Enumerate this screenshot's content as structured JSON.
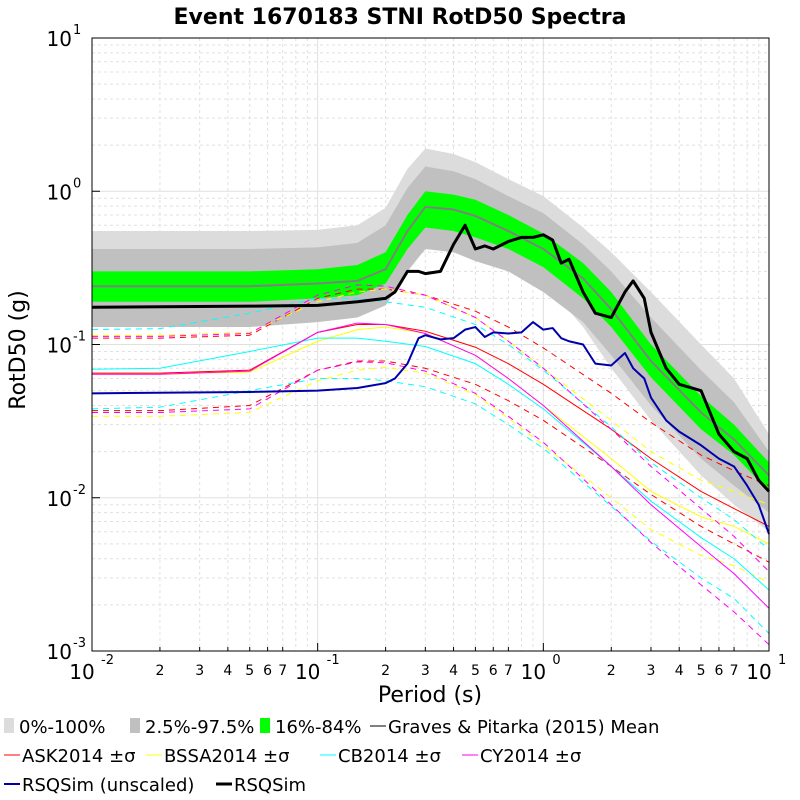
{
  "chart_data": {
    "type": "line",
    "title": "Event 1670183 STNI RotD50 Spectra",
    "xlabel": "Period (s)",
    "ylabel": "RotD50 (g)",
    "xscale": "log",
    "yscale": "log",
    "xlim": [
      0.01,
      10
    ],
    "ylim": [
      0.001,
      10
    ],
    "grid": true,
    "legend_placement": "bottom",
    "x_major_ticks": [
      {
        "base": "10",
        "exp": "-2"
      },
      {
        "base": "10",
        "exp": "-1"
      },
      {
        "base": "10",
        "exp": "0"
      },
      {
        "base": "10",
        "exp": "1"
      }
    ],
    "y_major_ticks": [
      {
        "base": "10",
        "exp": "-3"
      },
      {
        "base": "10",
        "exp": "-2"
      },
      {
        "base": "10",
        "exp": "-1"
      },
      {
        "base": "10",
        "exp": "0"
      },
      {
        "base": "10",
        "exp": "1"
      }
    ],
    "x_minor_tick_labels": [
      "2",
      "3",
      "4",
      "5",
      "6",
      "7"
    ],
    "periods": [
      0.01,
      0.02,
      0.05,
      0.1,
      0.15,
      0.2,
      0.25,
      0.3,
      0.4,
      0.5,
      0.7,
      1,
      1.5,
      2,
      3,
      5,
      7,
      10
    ],
    "bands": [
      {
        "name": "0%-100%",
        "color": "#dcdcdc",
        "lower": [
          0.17,
          0.17,
          0.17,
          0.18,
          0.19,
          0.22,
          0.35,
          0.52,
          0.48,
          0.42,
          0.34,
          0.26,
          0.13,
          0.07,
          0.032,
          0.014,
          0.009,
          0.006
        ],
        "upper": [
          0.55,
          0.55,
          0.55,
          0.56,
          0.6,
          0.78,
          1.4,
          1.9,
          1.75,
          1.55,
          1.2,
          0.93,
          0.58,
          0.4,
          0.22,
          0.1,
          0.06,
          0.026
        ]
      },
      {
        "name": "2.5%-97.5%",
        "color": "#c0c0c0",
        "lower": [
          0.13,
          0.13,
          0.13,
          0.14,
          0.15,
          0.18,
          0.3,
          0.42,
          0.4,
          0.35,
          0.3,
          0.22,
          0.14,
          0.085,
          0.04,
          0.018,
          0.012,
          0.008
        ],
        "upper": [
          0.42,
          0.42,
          0.42,
          0.43,
          0.46,
          0.6,
          1.05,
          1.45,
          1.35,
          1.2,
          0.93,
          0.72,
          0.45,
          0.3,
          0.15,
          0.068,
          0.042,
          0.02
        ]
      },
      {
        "name": "16%-84%",
        "color": "#00ff00",
        "lower": [
          0.19,
          0.19,
          0.19,
          0.2,
          0.21,
          0.25,
          0.42,
          0.58,
          0.55,
          0.5,
          0.42,
          0.32,
          0.2,
          0.13,
          0.061,
          0.028,
          0.019,
          0.011
        ],
        "upper": [
          0.3,
          0.3,
          0.3,
          0.31,
          0.33,
          0.4,
          0.7,
          1.0,
          0.95,
          0.88,
          0.7,
          0.53,
          0.34,
          0.22,
          0.1,
          0.046,
          0.03,
          0.017
        ]
      }
    ],
    "series": [
      {
        "name": "Graves & Pitarka (2015) Mean",
        "color": "#808080",
        "width": 2,
        "dash": "",
        "x": [
          0.01,
          0.02,
          0.05,
          0.1,
          0.15,
          0.2,
          0.25,
          0.3,
          0.4,
          0.5,
          0.7,
          1,
          1.5,
          2,
          3,
          5,
          7,
          10
        ],
        "y": [
          0.24,
          0.24,
          0.24,
          0.25,
          0.26,
          0.31,
          0.55,
          0.79,
          0.76,
          0.69,
          0.55,
          0.42,
          0.27,
          0.17,
          0.078,
          0.036,
          0.024,
          0.014
        ]
      },
      {
        "name": "ASK2014 ±σ",
        "color": "#ff0000",
        "width": 1,
        "dash": "",
        "x": [
          0.01,
          0.02,
          0.05,
          0.1,
          0.15,
          0.2,
          0.3,
          0.5,
          0.7,
          1,
          2,
          3,
          5,
          7,
          10
        ],
        "y": [
          0.065,
          0.065,
          0.068,
          0.12,
          0.135,
          0.135,
          0.122,
          0.096,
          0.075,
          0.055,
          0.028,
          0.018,
          0.011,
          0.0085,
          0.0065
        ]
      },
      {
        "name": "ASK2014 ±σ",
        "color": "#ff0000",
        "width": 1,
        "dash": "6,5",
        "x": [
          0.01,
          0.02,
          0.05,
          0.1,
          0.15,
          0.2,
          0.3,
          0.5,
          0.7,
          1,
          2,
          3,
          5,
          7,
          10
        ],
        "y": [
          0.11,
          0.11,
          0.115,
          0.2,
          0.23,
          0.23,
          0.21,
          0.165,
          0.13,
          0.095,
          0.048,
          0.031,
          0.019,
          0.015,
          0.012
        ]
      },
      {
        "name": "ASK2014 ±σ",
        "color": "#ff0000",
        "width": 1,
        "dash": "6,5",
        "x": [
          0.01,
          0.02,
          0.05,
          0.1,
          0.15,
          0.2,
          0.3,
          0.5,
          0.7,
          1,
          2,
          3,
          5,
          7,
          10
        ],
        "y": [
          0.037,
          0.037,
          0.04,
          0.068,
          0.078,
          0.078,
          0.07,
          0.055,
          0.043,
          0.032,
          0.016,
          0.0105,
          0.0065,
          0.005,
          0.0038
        ]
      },
      {
        "name": "BSSA2014 ±σ",
        "color": "#ffff00",
        "width": 1,
        "dash": "",
        "x": [
          0.01,
          0.02,
          0.05,
          0.1,
          0.15,
          0.2,
          0.3,
          0.5,
          0.7,
          1,
          2,
          3,
          5,
          7,
          10
        ],
        "y": [
          0.064,
          0.064,
          0.066,
          0.105,
          0.125,
          0.13,
          0.118,
          0.085,
          0.06,
          0.04,
          0.018,
          0.011,
          0.0075,
          0.0065,
          0.005
        ]
      },
      {
        "name": "BSSA2014 ±σ",
        "color": "#ffff00",
        "width": 1,
        "dash": "6,5",
        "x": [
          0.01,
          0.02,
          0.05,
          0.1,
          0.15,
          0.2,
          0.3,
          0.5,
          0.7,
          1,
          2,
          3,
          5,
          7,
          10
        ],
        "y": [
          0.115,
          0.115,
          0.12,
          0.19,
          0.22,
          0.23,
          0.21,
          0.15,
          0.105,
          0.07,
          0.032,
          0.02,
          0.013,
          0.011,
          0.009
        ]
      },
      {
        "name": "BSSA2014 ±σ",
        "color": "#ffff00",
        "width": 1,
        "dash": "6,5",
        "x": [
          0.01,
          0.02,
          0.05,
          0.1,
          0.15,
          0.2,
          0.3,
          0.5,
          0.7,
          1,
          2,
          3,
          5,
          7,
          10
        ],
        "y": [
          0.034,
          0.034,
          0.036,
          0.058,
          0.068,
          0.071,
          0.065,
          0.047,
          0.033,
          0.022,
          0.01,
          0.0062,
          0.0042,
          0.0036,
          0.0028
        ]
      },
      {
        "name": "CB2014 ±σ",
        "color": "#00ffff",
        "width": 1,
        "dash": "",
        "x": [
          0.01,
          0.02,
          0.05,
          0.1,
          0.15,
          0.2,
          0.3,
          0.5,
          0.7,
          1,
          2,
          3,
          5,
          7,
          10
        ],
        "y": [
          0.069,
          0.07,
          0.09,
          0.11,
          0.11,
          0.105,
          0.097,
          0.075,
          0.055,
          0.038,
          0.016,
          0.0095,
          0.0055,
          0.004,
          0.0025
        ]
      },
      {
        "name": "CB2014 ±σ",
        "color": "#00ffff",
        "width": 1,
        "dash": "6,5",
        "x": [
          0.01,
          0.02,
          0.05,
          0.1,
          0.15,
          0.2,
          0.3,
          0.5,
          0.7,
          1,
          2,
          3,
          5,
          7,
          10
        ],
        "y": [
          0.125,
          0.127,
          0.16,
          0.2,
          0.2,
          0.19,
          0.175,
          0.135,
          0.1,
          0.068,
          0.029,
          0.017,
          0.01,
          0.0072,
          0.0046
        ]
      },
      {
        "name": "CB2014 ±σ",
        "color": "#00ffff",
        "width": 1,
        "dash": "6,5",
        "x": [
          0.01,
          0.02,
          0.05,
          0.1,
          0.15,
          0.2,
          0.3,
          0.5,
          0.7,
          1,
          2,
          3,
          5,
          7,
          10
        ],
        "y": [
          0.038,
          0.039,
          0.05,
          0.06,
          0.06,
          0.058,
          0.053,
          0.041,
          0.03,
          0.021,
          0.0088,
          0.0052,
          0.003,
          0.0022,
          0.0013
        ]
      },
      {
        "name": "CY2014 ±σ",
        "color": "#ff00ff",
        "width": 1,
        "dash": "",
        "x": [
          0.01,
          0.02,
          0.05,
          0.1,
          0.15,
          0.2,
          0.3,
          0.5,
          0.7,
          1,
          2,
          3,
          5,
          7,
          10
        ],
        "y": [
          0.064,
          0.064,
          0.067,
          0.12,
          0.138,
          0.135,
          0.118,
          0.085,
          0.06,
          0.04,
          0.016,
          0.009,
          0.0048,
          0.0032,
          0.0019
        ]
      },
      {
        "name": "CY2014 ±σ",
        "color": "#ff00ff",
        "width": 1,
        "dash": "6,5",
        "x": [
          0.01,
          0.02,
          0.05,
          0.1,
          0.15,
          0.2,
          0.3,
          0.5,
          0.7,
          1,
          2,
          3,
          5,
          7,
          10
        ],
        "y": [
          0.113,
          0.113,
          0.118,
          0.21,
          0.245,
          0.24,
          0.21,
          0.15,
          0.105,
          0.07,
          0.028,
          0.016,
          0.0085,
          0.0056,
          0.0033
        ]
      },
      {
        "name": "CY2014 ±σ",
        "color": "#ff00ff",
        "width": 1,
        "dash": "6,5",
        "x": [
          0.01,
          0.02,
          0.05,
          0.1,
          0.15,
          0.2,
          0.3,
          0.5,
          0.7,
          1,
          2,
          3,
          5,
          7,
          10
        ],
        "y": [
          0.036,
          0.036,
          0.038,
          0.068,
          0.077,
          0.076,
          0.067,
          0.048,
          0.034,
          0.023,
          0.009,
          0.0051,
          0.0027,
          0.0018,
          0.0011
        ]
      },
      {
        "name": "RSQSim (unscaled)",
        "color": "#0000aa",
        "width": 2,
        "dash": "",
        "x": [
          0.01,
          0.05,
          0.1,
          0.15,
          0.2,
          0.22,
          0.25,
          0.28,
          0.3,
          0.35,
          0.4,
          0.45,
          0.5,
          0.55,
          0.6,
          0.7,
          0.8,
          0.9,
          1.0,
          1.1,
          1.2,
          1.3,
          1.5,
          1.7,
          2.0,
          2.3,
          2.5,
          2.8,
          3.0,
          3.5,
          4.0,
          5.0,
          6.0,
          7.0,
          8.0,
          9.0,
          10.0
        ],
        "y": [
          0.048,
          0.049,
          0.05,
          0.052,
          0.056,
          0.06,
          0.075,
          0.11,
          0.115,
          0.108,
          0.11,
          0.125,
          0.13,
          0.112,
          0.12,
          0.118,
          0.12,
          0.14,
          0.125,
          0.128,
          0.11,
          0.105,
          0.1,
          0.075,
          0.073,
          0.088,
          0.07,
          0.06,
          0.045,
          0.032,
          0.027,
          0.022,
          0.018,
          0.016,
          0.012,
          0.009,
          0.0058
        ]
      },
      {
        "name": "RSQSim",
        "color": "#000000",
        "width": 3,
        "dash": "",
        "x": [
          0.01,
          0.05,
          0.1,
          0.15,
          0.2,
          0.22,
          0.25,
          0.28,
          0.3,
          0.35,
          0.4,
          0.45,
          0.5,
          0.55,
          0.6,
          0.7,
          0.8,
          0.9,
          1.0,
          1.1,
          1.2,
          1.3,
          1.5,
          1.7,
          2.0,
          2.3,
          2.5,
          2.8,
          3.0,
          3.5,
          4.0,
          5.0,
          6.0,
          7.0,
          8.0,
          9.0,
          10.0
        ],
        "y": [
          0.175,
          0.178,
          0.18,
          0.19,
          0.2,
          0.22,
          0.3,
          0.3,
          0.29,
          0.3,
          0.45,
          0.6,
          0.42,
          0.44,
          0.42,
          0.47,
          0.5,
          0.5,
          0.52,
          0.48,
          0.34,
          0.36,
          0.22,
          0.16,
          0.15,
          0.22,
          0.26,
          0.2,
          0.12,
          0.07,
          0.055,
          0.05,
          0.026,
          0.02,
          0.018,
          0.013,
          0.011
        ]
      }
    ],
    "legend": [
      {
        "label": "0%-100%",
        "kind": "patch",
        "color": "#dcdcdc"
      },
      {
        "label": "2.5%-97.5%",
        "kind": "patch",
        "color": "#c0c0c0"
      },
      {
        "label": "16%-84%",
        "kind": "patch",
        "color": "#00ff00"
      },
      {
        "label": "Graves & Pitarka (2015) Mean",
        "kind": "line",
        "color": "#808080",
        "width": 2
      },
      {
        "label": "ASK2014 ±σ",
        "kind": "line",
        "color": "#ff0000",
        "width": 1
      },
      {
        "label": "BSSA2014 ±σ",
        "kind": "line",
        "color": "#ffff00",
        "width": 1
      },
      {
        "label": "CB2014 ±σ",
        "kind": "line",
        "color": "#00ffff",
        "width": 1
      },
      {
        "label": "CY2014 ±σ",
        "kind": "line",
        "color": "#ff00ff",
        "width": 1
      },
      {
        "label": "RSQSim (unscaled)",
        "kind": "line",
        "color": "#0000aa",
        "width": 2
      },
      {
        "label": "RSQSim",
        "kind": "line",
        "color": "#000000",
        "width": 3
      }
    ]
  }
}
